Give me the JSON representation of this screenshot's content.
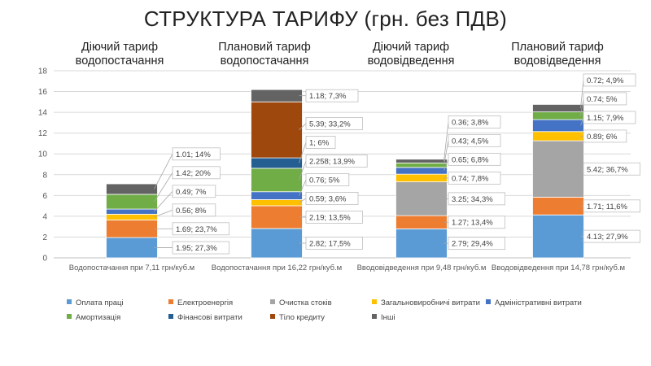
{
  "title": "СТРУКТУРА ТАРИФУ (грн. без ПДВ)",
  "captions": [
    {
      "line1": "Діючий тариф",
      "line2": "водопостачання"
    },
    {
      "line1": "Плановий тариф",
      "line2": "водопостачання"
    },
    {
      "line1": "Діючий тариф",
      "line2": "водовідведення"
    },
    {
      "line1": "Плановий тариф",
      "line2": "водовідведення"
    }
  ],
  "chart_data": {
    "type": "bar",
    "stacked": true,
    "categories": [
      "Водопостачання при 7,11 грн/куб.м",
      "Водопостачання при 16,22 грн/куб.м",
      "Вводовідведення при 9,48 грн/куб.м",
      "Вводовідведення при 14,78 грн/куб.м"
    ],
    "ylim": [
      0,
      18
    ],
    "yticks": [
      "0",
      "2",
      "4",
      "6",
      "8",
      "10",
      "12",
      "14",
      "16",
      "18"
    ],
    "grid": true,
    "legend_position": "bottom",
    "series": [
      {
        "name": "Оплата праці",
        "color": "#5b9bd5",
        "values": [
          1.95,
          2.82,
          2.79,
          4.13
        ]
      },
      {
        "name": "Електроенергія",
        "color": "#ed7d31",
        "values": [
          1.69,
          2.19,
          1.27,
          1.71
        ]
      },
      {
        "name": "Очистка стоків",
        "color": "#a5a5a5",
        "values": [
          0,
          0,
          3.25,
          5.42
        ]
      },
      {
        "name": "Загальновиробничі витрати",
        "color": "#ffc000",
        "values": [
          0.56,
          0.59,
          0.74,
          0.89
        ]
      },
      {
        "name": "Адміністративні витрати",
        "color": "#4472c4",
        "values": [
          0.49,
          0.76,
          0.65,
          1.15
        ]
      },
      {
        "name": "Амортизація",
        "color": "#70ad47",
        "values": [
          1.42,
          2.258,
          0.43,
          0.74
        ]
      },
      {
        "name": "Фінансові витрати",
        "color": "#255e91",
        "values": [
          0,
          1,
          0,
          0
        ]
      },
      {
        "name": "Тіло кредиту",
        "color": "#9e480e",
        "values": [
          0,
          5.39,
          0,
          0
        ]
      },
      {
        "name": "Інші",
        "color": "#636363",
        "values": [
          1.01,
          1.18,
          0.36,
          0.72
        ]
      }
    ],
    "data_labels": [
      [
        "1.95; 27,3%",
        "1.69; 23,7%",
        "0.56; 8%",
        "0.49; 7%",
        "1.42; 20%",
        "1.01; 14%"
      ],
      [
        "2.82; 17,5%",
        "2.19; 13,5%",
        "0.59; 3,6%",
        "0.76; 5%",
        "2.258; 13,9%",
        "1; 6%",
        "5.39; 33,2%",
        "1.18; 7,3%"
      ],
      [
        "2.79; 29,4%",
        "1.27; 13,4%",
        "3.25; 34,3%",
        "0.74; 7,8%",
        "0.65; 6,8%",
        "0.43; 4,5%",
        "0.36; 3,8%"
      ],
      [
        "4.13; 27,9%",
        "1.71; 11,6%",
        "5.42; 36,7%",
        "0.89; 6%",
        "1.15; 7,9%",
        "0.74; 5%",
        "0.72; 4,9%"
      ]
    ],
    "legend_rows": [
      [
        "Оплата праці",
        "Електроенергія",
        "Очистка стоків",
        "Загальновиробничі витрати",
        "Адміністративні витрати"
      ],
      [
        "Амортизація",
        "Фінансові витрати",
        "Тіло кредиту",
        "Інші"
      ]
    ]
  }
}
